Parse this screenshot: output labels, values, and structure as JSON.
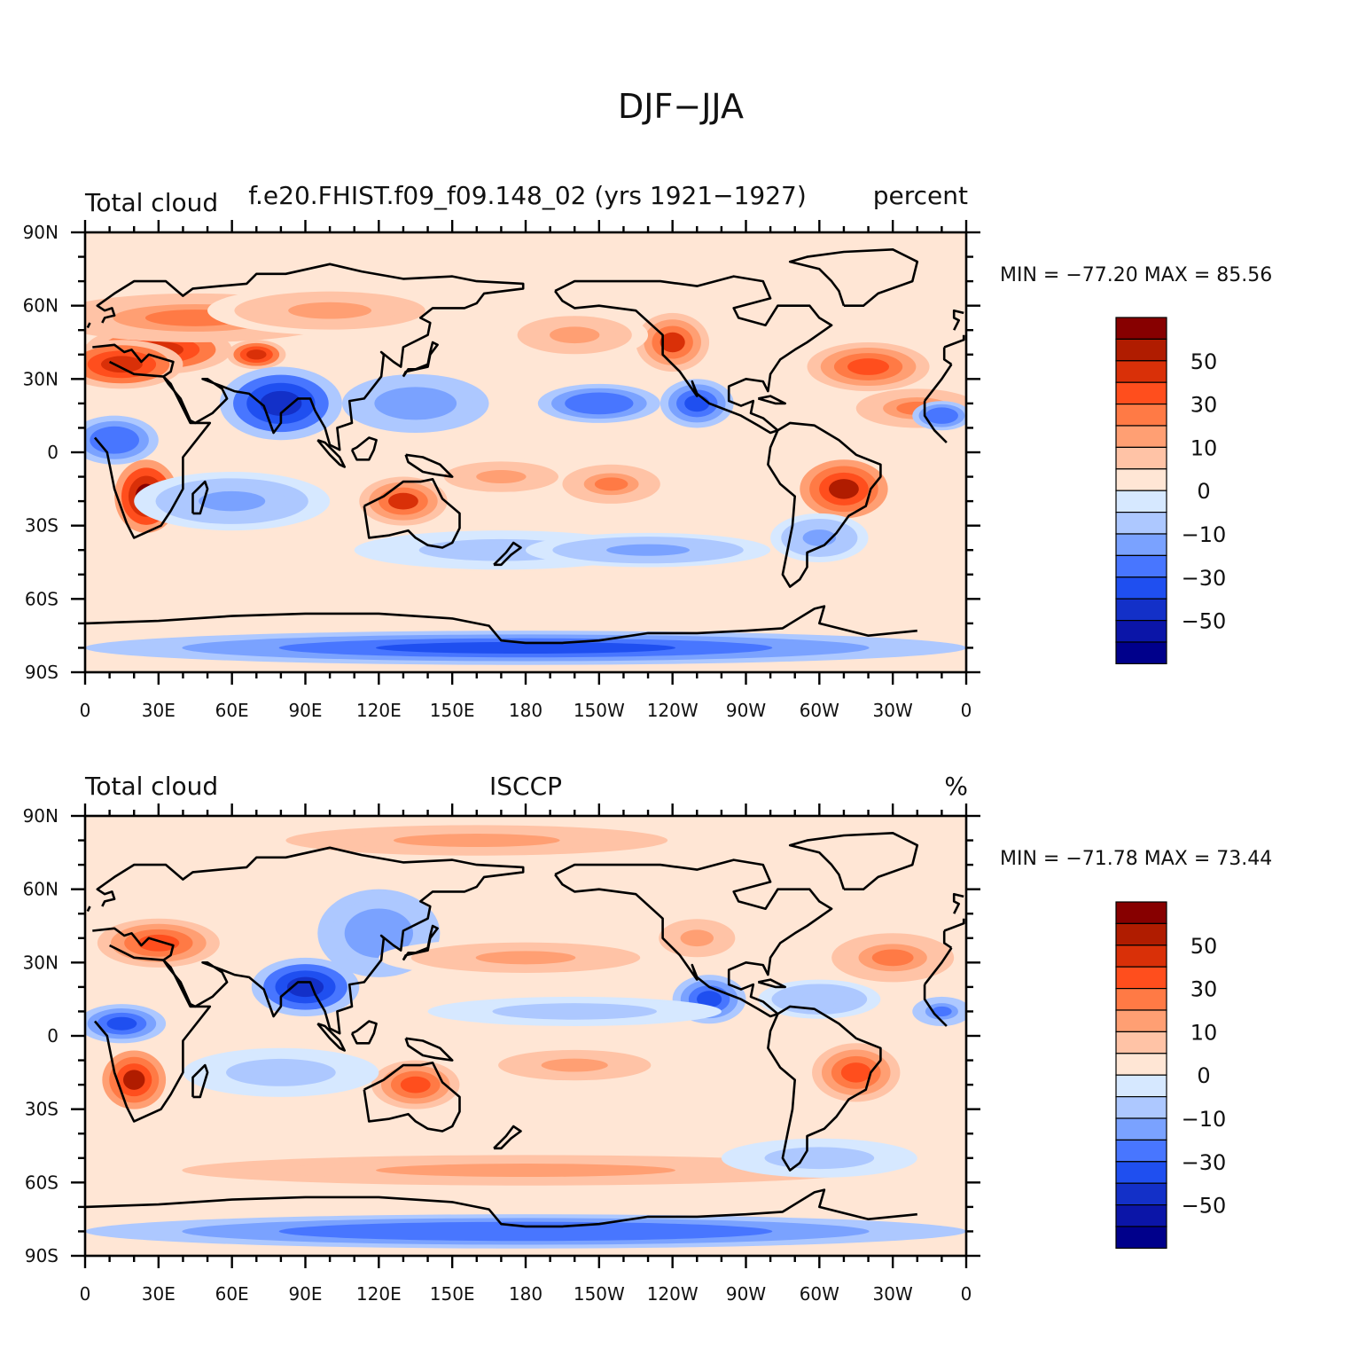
{
  "title": "DJF−JJA",
  "colorbar": {
    "colors": [
      "#00008b",
      "#0b15a8",
      "#1330c8",
      "#1f4ff0",
      "#4876ff",
      "#7aa2ff",
      "#adc8ff",
      "#d6e8ff",
      "#ffe6d5",
      "#ffc3a6",
      "#ff9f73",
      "#ff7a45",
      "#ff4e1d",
      "#d93008",
      "#b01c00",
      "#870000"
    ],
    "labels": [
      "−50",
      "−30",
      "−10",
      "0",
      "10",
      "30",
      "50"
    ]
  },
  "xticks": [
    "0",
    "30E",
    "60E",
    "90E",
    "120E",
    "150E",
    "180",
    "150W",
    "120W",
    "90W",
    "60W",
    "30W",
    "0"
  ],
  "yticks": [
    "90N",
    "60N",
    "30N",
    "0",
    "30S",
    "60S",
    "90S"
  ],
  "panels": [
    {
      "left": "Total cloud",
      "center": "f.e20.FHIST.f09_f09.148_02 (yrs 1921−1927)",
      "right": "percent",
      "minmax": "MIN = −77.20 MAX =   85.56",
      "min": -77.2,
      "max": 85.56
    },
    {
      "left": "Total cloud",
      "center": "ISCCP",
      "right": "%",
      "minmax": "MIN = −71.78 MAX =   73.44",
      "min": -71.78,
      "max": 73.44
    }
  ],
  "chart_data": [
    {
      "type": "heatmap",
      "title": "DJF−JJA",
      "subtitle": "f.e20.FHIST.f09_f09.148_02 (yrs 1921−1927)",
      "variable": "Total cloud",
      "units": "percent",
      "x_ticks": [
        "0",
        "30E",
        "60E",
        "90E",
        "120E",
        "150E",
        "180",
        "150W",
        "120W",
        "90W",
        "60W",
        "30W",
        "0"
      ],
      "y_ticks": [
        "90N",
        "60N",
        "30N",
        "0",
        "30S",
        "60S",
        "90S"
      ],
      "xlim": [
        0,
        360
      ],
      "ylim": [
        -90,
        90
      ],
      "color_levels": [
        -70,
        -60,
        -50,
        -40,
        -30,
        -20,
        -10,
        0,
        10,
        20,
        30,
        40,
        50,
        60,
        70
      ],
      "min": -77.2,
      "max": 85.56
    },
    {
      "type": "heatmap",
      "title": "DJF−JJA",
      "subtitle": "ISCCP",
      "variable": "Total cloud",
      "units": "%",
      "x_ticks": [
        "0",
        "30E",
        "60E",
        "90E",
        "120E",
        "150E",
        "180",
        "150W",
        "120W",
        "90W",
        "60W",
        "30W",
        "0"
      ],
      "y_ticks": [
        "90N",
        "60N",
        "30N",
        "0",
        "30S",
        "60S",
        "90S"
      ],
      "xlim": [
        0,
        360
      ],
      "ylim": [
        -90,
        90
      ],
      "color_levels": [
        -70,
        -60,
        -50,
        -40,
        -30,
        -20,
        -10,
        0,
        10,
        20,
        30,
        40,
        50,
        60,
        70
      ],
      "min": -71.78,
      "max": 73.44
    }
  ]
}
